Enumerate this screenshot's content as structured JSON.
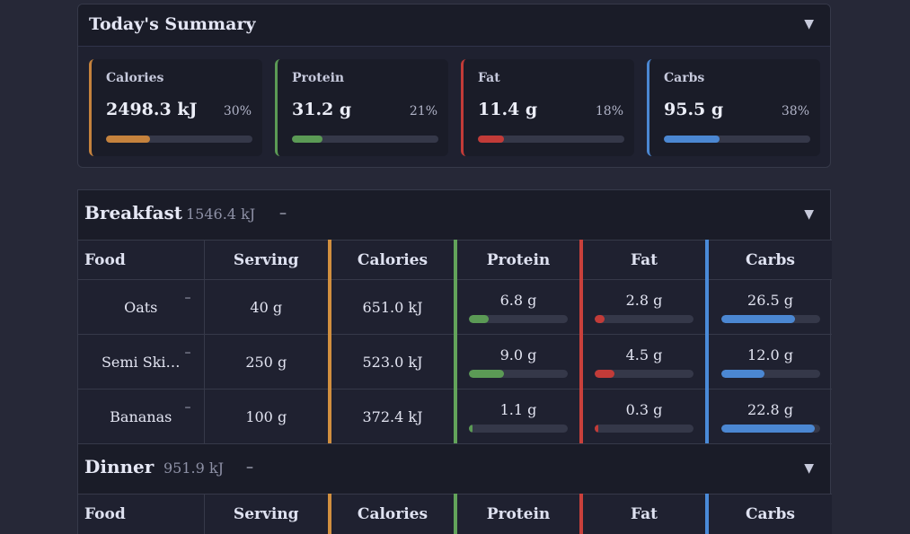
{
  "summary": {
    "title": "Today's Summary",
    "chevron": "▼",
    "macros": [
      {
        "label": "Calories",
        "value": "2498.3 kJ",
        "pct": "30%",
        "fill": 0.3,
        "color": "#c5823d"
      },
      {
        "label": "Protein",
        "value": "31.2 g",
        "pct": "21%",
        "fill": 0.21,
        "color": "#5b9a55"
      },
      {
        "label": "Fat",
        "value": "11.4 g",
        "pct": "18%",
        "fill": 0.18,
        "color": "#c23b38"
      },
      {
        "label": "Carbs",
        "value": "95.5 g",
        "pct": "38%",
        "fill": 0.38,
        "color": "#4b87d2"
      }
    ]
  },
  "columns": {
    "food": "Food",
    "serving": "Serving",
    "calories": "Calories",
    "protein": "Protein",
    "fat": "Fat",
    "carbs": "Carbs"
  },
  "colors": {
    "protein": "#5b9a55",
    "fat": "#c23b38",
    "carbs": "#4b87d2"
  },
  "meals": [
    {
      "title": "Breakfast",
      "kj": "1546.4 kJ",
      "dash": "–",
      "chevron": "▼",
      "rows": [
        {
          "name": "Oats",
          "dash": "–",
          "serving": "40 g",
          "calories": "651.0 kJ",
          "protein": "6.8 g",
          "protein_fill": 0.2,
          "fat": "2.8 g",
          "fat_fill": 0.1,
          "carbs": "26.5 g",
          "carbs_fill": 0.75
        },
        {
          "name": "Semi Ski…",
          "dash": "–",
          "serving": "250 g",
          "calories": "523.0 kJ",
          "protein": "9.0 g",
          "protein_fill": 0.35,
          "fat": "4.5 g",
          "fat_fill": 0.2,
          "carbs": "12.0 g",
          "carbs_fill": 0.44
        },
        {
          "name": "Bananas",
          "dash": "–",
          "serving": "100 g",
          "calories": "372.4 kJ",
          "protein": "1.1 g",
          "protein_fill": 0.04,
          "fat": "0.3 g",
          "fat_fill": 0.04,
          "carbs": "22.8 g",
          "carbs_fill": 0.95
        }
      ]
    },
    {
      "title": "Dinner",
      "kj": "951.9 kJ",
      "dash": "–",
      "chevron": "▼",
      "rows": []
    }
  ]
}
